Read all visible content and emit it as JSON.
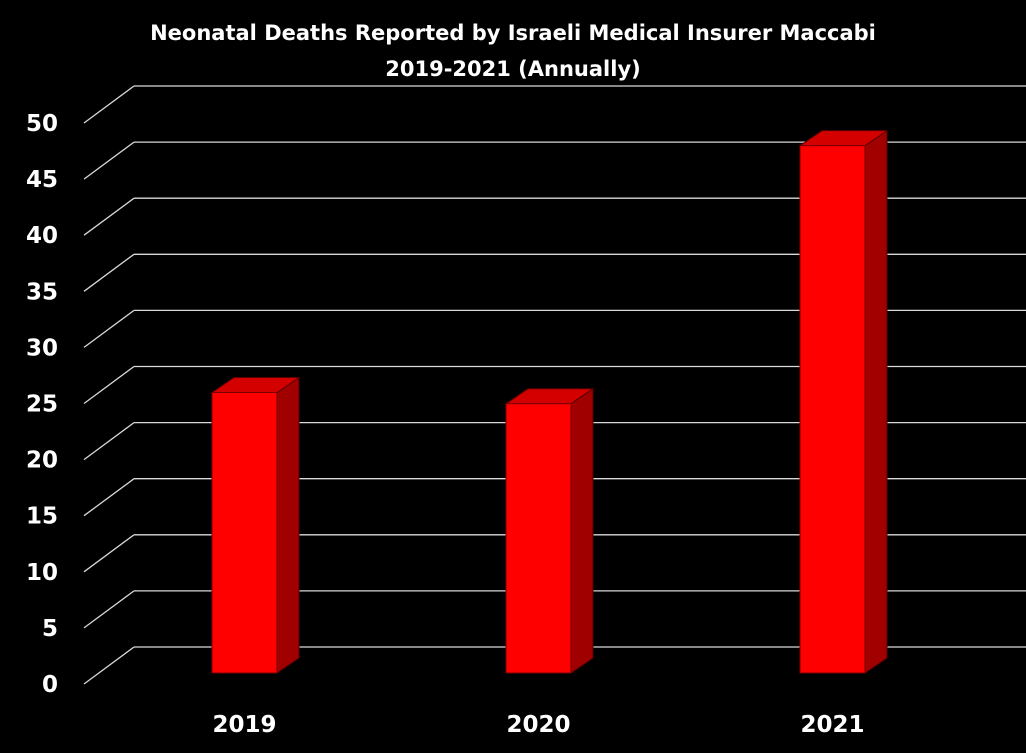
{
  "chart_data": {
    "type": "bar",
    "title": "Neonatal Deaths Reported by Israeli Medical Insurer Maccabi",
    "subtitle": "2019-2021 (Annually)",
    "categories": [
      "2019",
      "2020",
      "2021"
    ],
    "values": [
      25,
      24,
      47
    ],
    "xlabel": "",
    "ylabel": "",
    "ylim": [
      0,
      50
    ],
    "yticks": [
      "0",
      "5",
      "10",
      "15",
      "20",
      "25",
      "30",
      "35",
      "40",
      "45",
      "50"
    ],
    "grid": true,
    "legend": "none",
    "colors": {
      "bar_front": "#ff0000",
      "bar_side": "#a00000",
      "bar_top": "#d40000",
      "gridline": "#d9d9d9",
      "background": "#000000",
      "text": "#ffffff"
    }
  }
}
